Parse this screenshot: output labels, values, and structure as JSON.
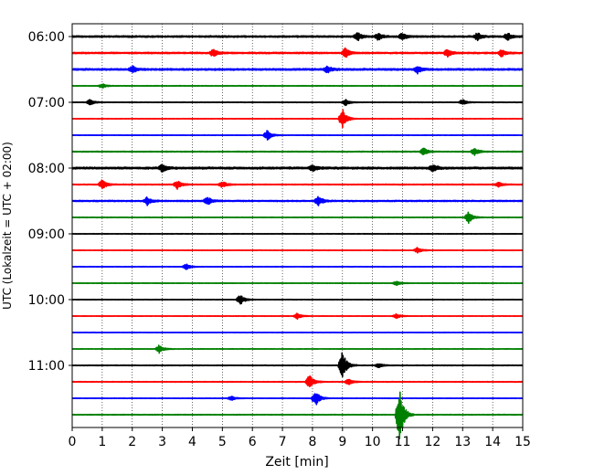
{
  "chart_data": {
    "type": "line",
    "title": "",
    "xlabel": "Zeit  [min]",
    "ylabel": "UTC (Lokalzeit = UTC + 02:00)",
    "xlim": [
      0,
      15
    ],
    "x_ticks": [
      0,
      1,
      2,
      3,
      4,
      5,
      6,
      7,
      8,
      9,
      10,
      11,
      12,
      13,
      14,
      15
    ],
    "x_tick_labels": [
      "0",
      "1",
      "2",
      "3",
      "4",
      "5",
      "6",
      "7",
      "8",
      "9",
      "10",
      "11",
      "12",
      "13",
      "14",
      "15"
    ],
    "y_tick_labels": [
      "06:00",
      "07:00",
      "08:00",
      "09:00",
      "10:00",
      "11:00"
    ],
    "grid": "vertical dotted at each minute",
    "trace_interval_min": 15,
    "start_utc": "06:00",
    "color_cycle": [
      "#000000",
      "#ff0000",
      "#0000ff",
      "#008000"
    ],
    "traces": [
      {
        "start": "06:00",
        "color": "#000000",
        "noise": 0.9,
        "events": [
          {
            "t": 9.5,
            "amp": 1.2
          },
          {
            "t": 10.2,
            "amp": 1.0
          },
          {
            "t": 11.0,
            "amp": 1.0
          },
          {
            "t": 13.5,
            "amp": 1.0
          },
          {
            "t": 14.5,
            "amp": 1.0
          }
        ]
      },
      {
        "start": "06:15",
        "color": "#ff0000",
        "noise": 0.8,
        "events": [
          {
            "t": 4.7,
            "amp": 1.0
          },
          {
            "t": 9.1,
            "amp": 1.3
          },
          {
            "t": 12.5,
            "amp": 1.0
          },
          {
            "t": 14.3,
            "amp": 1.0
          }
        ]
      },
      {
        "start": "06:30",
        "color": "#0000ff",
        "noise": 1.0,
        "events": [
          {
            "t": 2.0,
            "amp": 1.0
          },
          {
            "t": 8.5,
            "amp": 1.0
          },
          {
            "t": 11.5,
            "amp": 1.0
          }
        ]
      },
      {
        "start": "06:45",
        "color": "#008000",
        "noise": 0.35,
        "events": [
          {
            "t": 1.0,
            "amp": 0.6
          }
        ]
      },
      {
        "start": "07:00",
        "color": "#000000",
        "noise": 0.35,
        "events": [
          {
            "t": 0.6,
            "amp": 0.8
          },
          {
            "t": 9.1,
            "amp": 0.9
          },
          {
            "t": 13.0,
            "amp": 0.7
          }
        ]
      },
      {
        "start": "07:15",
        "color": "#ff0000",
        "noise": 0.3,
        "events": [
          {
            "t": 9.0,
            "amp": 2.8
          }
        ]
      },
      {
        "start": "07:30",
        "color": "#0000ff",
        "noise": 0.3,
        "events": [
          {
            "t": 6.5,
            "amp": 1.4
          }
        ]
      },
      {
        "start": "07:45",
        "color": "#008000",
        "noise": 0.5,
        "events": [
          {
            "t": 11.7,
            "amp": 1.0
          },
          {
            "t": 13.4,
            "amp": 1.1
          }
        ]
      },
      {
        "start": "08:00",
        "color": "#000000",
        "noise": 1.1,
        "events": [
          {
            "t": 3.0,
            "amp": 1.0
          },
          {
            "t": 8.0,
            "amp": 1.0
          },
          {
            "t": 12.0,
            "amp": 1.0
          }
        ]
      },
      {
        "start": "08:15",
        "color": "#ff0000",
        "noise": 0.5,
        "events": [
          {
            "t": 1.0,
            "amp": 1.3
          },
          {
            "t": 3.5,
            "amp": 1.2
          },
          {
            "t": 5.0,
            "amp": 0.9
          },
          {
            "t": 14.2,
            "amp": 0.6
          }
        ]
      },
      {
        "start": "08:30",
        "color": "#0000ff",
        "noise": 0.7,
        "events": [
          {
            "t": 2.5,
            "amp": 1.1
          },
          {
            "t": 4.5,
            "amp": 1.2
          },
          {
            "t": 8.2,
            "amp": 1.4
          }
        ]
      },
      {
        "start": "08:45",
        "color": "#008000",
        "noise": 0.35,
        "events": [
          {
            "t": 13.2,
            "amp": 1.6
          }
        ]
      },
      {
        "start": "09:00",
        "color": "#000000",
        "noise": 0.3,
        "events": []
      },
      {
        "start": "09:15",
        "color": "#ff0000",
        "noise": 0.3,
        "events": [
          {
            "t": 11.5,
            "amp": 0.8
          }
        ]
      },
      {
        "start": "09:30",
        "color": "#0000ff",
        "noise": 0.3,
        "events": [
          {
            "t": 3.8,
            "amp": 0.8
          }
        ]
      },
      {
        "start": "09:45",
        "color": "#008000",
        "noise": 0.3,
        "events": [
          {
            "t": 10.8,
            "amp": 0.6
          }
        ]
      },
      {
        "start": "10:00",
        "color": "#000000",
        "noise": 0.3,
        "events": [
          {
            "t": 5.6,
            "amp": 1.4
          }
        ]
      },
      {
        "start": "10:15",
        "color": "#ff0000",
        "noise": 0.3,
        "events": [
          {
            "t": 7.5,
            "amp": 0.8
          },
          {
            "t": 10.8,
            "amp": 0.6
          }
        ]
      },
      {
        "start": "10:30",
        "color": "#0000ff",
        "noise": 0.3,
        "events": []
      },
      {
        "start": "10:45",
        "color": "#008000",
        "noise": 0.3,
        "events": [
          {
            "t": 2.9,
            "amp": 1.1
          }
        ]
      },
      {
        "start": "11:00",
        "color": "#000000",
        "noise": 0.4,
        "events": [
          {
            "t": 9.0,
            "amp": 4.2
          },
          {
            "t": 10.2,
            "amp": 0.6
          }
        ]
      },
      {
        "start": "11:15",
        "color": "#ff0000",
        "noise": 0.4,
        "events": [
          {
            "t": 7.9,
            "amp": 2.0
          },
          {
            "t": 9.2,
            "amp": 0.8
          }
        ]
      },
      {
        "start": "11:30",
        "color": "#0000ff",
        "noise": 0.3,
        "events": [
          {
            "t": 8.1,
            "amp": 2.2
          },
          {
            "t": 5.3,
            "amp": 0.6
          }
        ]
      },
      {
        "start": "11:45",
        "color": "#008000",
        "noise": 0.4,
        "events": [
          {
            "t": 10.9,
            "amp": 8.0
          }
        ]
      }
    ]
  }
}
